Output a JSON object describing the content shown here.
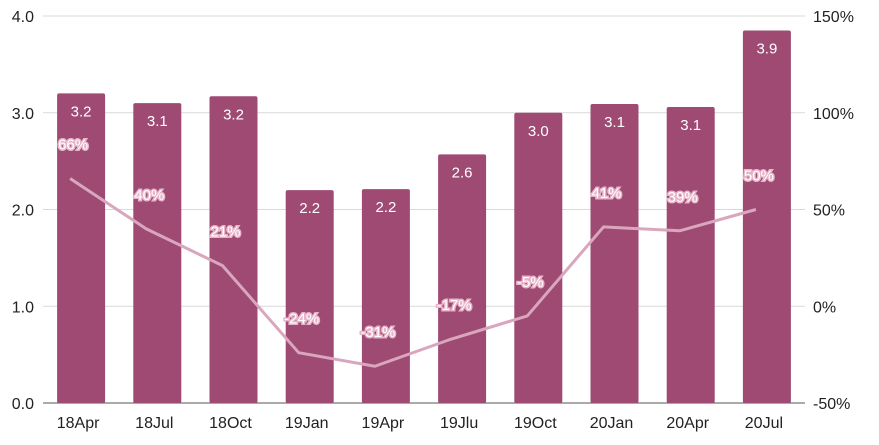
{
  "chart_data": {
    "type": "bar",
    "categories": [
      "18Apr",
      "18Jul",
      "18Oct",
      "19Jan",
      "19Apr",
      "19Jlu",
      "19Oct",
      "20Jan",
      "20Apr",
      "20Jul"
    ],
    "series": [
      {
        "type": "bar",
        "axis": "left",
        "values": [
          3.2,
          3.1,
          3.17,
          2.2,
          2.21,
          2.57,
          3.0,
          3.09,
          3.06,
          3.85
        ],
        "labels": [
          "3.2",
          "3.1",
          "3.2",
          "2.2",
          "2.2",
          "2.6",
          "3.0",
          "3.1",
          "3.1",
          "3.9"
        ],
        "color": "#9e4a73"
      },
      {
        "type": "line",
        "axis": "right",
        "values": [
          66,
          40,
          21,
          -24,
          -31,
          -17,
          -5,
          41,
          39,
          50
        ],
        "labels": [
          "66%",
          "40%",
          "21%",
          "-24%",
          "-31%",
          "-17%",
          "-5%",
          "41%",
          "39%",
          "50%"
        ],
        "color": "#d9a6bd"
      }
    ],
    "y_left": {
      "min": 0,
      "max": 4,
      "ticks": [
        "0.0",
        "1.0",
        "2.0",
        "3.0",
        "4.0"
      ]
    },
    "y_right": {
      "min": -50,
      "max": 150,
      "ticks": [
        "-50%",
        "0%",
        "50%",
        "100%",
        "150%"
      ]
    },
    "grid": true,
    "legend": "none",
    "title": "",
    "xlabel": "",
    "ylabel": ""
  }
}
